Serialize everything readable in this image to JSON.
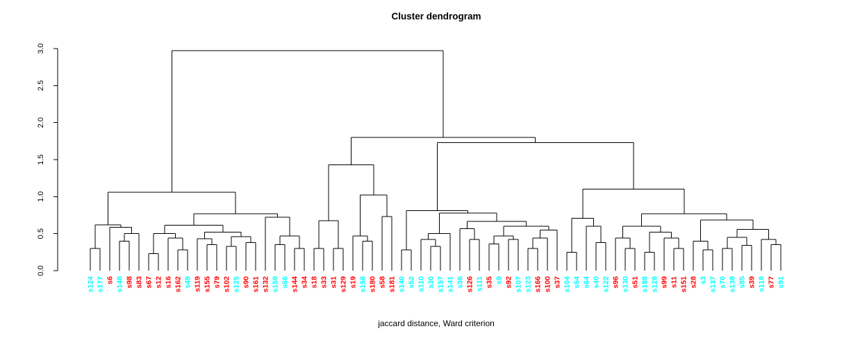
{
  "chart_data": {
    "type": "dendrogram",
    "title": "Cluster dendrogram",
    "xlabel": "jaccard distance, Ward criterion",
    "ylabel": "",
    "ylim": [
      0.0,
      3.0
    ],
    "yticks": [
      0.0,
      0.5,
      1.0,
      1.5,
      2.0,
      2.5,
      3.0
    ],
    "grid": false,
    "line_color": "#000000",
    "palette": {
      "cyan": "#00FFFF",
      "red": "#FF0000"
    },
    "leaves": [
      {
        "label": "s124",
        "color": "cyan"
      },
      {
        "label": "s177",
        "color": "cyan"
      },
      {
        "label": "s6",
        "color": "red"
      },
      {
        "label": "s148",
        "color": "cyan"
      },
      {
        "label": "s98",
        "color": "red"
      },
      {
        "label": "s83",
        "color": "red"
      },
      {
        "label": "s67",
        "color": "red"
      },
      {
        "label": "s12",
        "color": "red"
      },
      {
        "label": "s16",
        "color": "red"
      },
      {
        "label": "s162",
        "color": "red"
      },
      {
        "label": "s49",
        "color": "cyan"
      },
      {
        "label": "s119",
        "color": "red"
      },
      {
        "label": "s155",
        "color": "red"
      },
      {
        "label": "s79",
        "color": "red"
      },
      {
        "label": "s102",
        "color": "red"
      },
      {
        "label": "s125",
        "color": "cyan"
      },
      {
        "label": "s90",
        "color": "red"
      },
      {
        "label": "s161",
        "color": "red"
      },
      {
        "label": "s132",
        "color": "red"
      },
      {
        "label": "s159",
        "color": "cyan"
      },
      {
        "label": "s66",
        "color": "cyan"
      },
      {
        "label": "s144",
        "color": "red"
      },
      {
        "label": "s34",
        "color": "red"
      },
      {
        "label": "s18",
        "color": "red"
      },
      {
        "label": "s33",
        "color": "red"
      },
      {
        "label": "s31",
        "color": "red"
      },
      {
        "label": "s129",
        "color": "red"
      },
      {
        "label": "s19",
        "color": "red"
      },
      {
        "label": "s158",
        "color": "cyan"
      },
      {
        "label": "s180",
        "color": "red"
      },
      {
        "label": "s58",
        "color": "red"
      },
      {
        "label": "s181",
        "color": "red"
      },
      {
        "label": "s140",
        "color": "cyan"
      },
      {
        "label": "s52",
        "color": "cyan"
      },
      {
        "label": "s110",
        "color": "cyan"
      },
      {
        "label": "s30",
        "color": "cyan"
      },
      {
        "label": "s157",
        "color": "cyan"
      },
      {
        "label": "s141",
        "color": "cyan"
      },
      {
        "label": "s36",
        "color": "cyan"
      },
      {
        "label": "s126",
        "color": "red"
      },
      {
        "label": "s111",
        "color": "cyan"
      },
      {
        "label": "s35",
        "color": "red"
      },
      {
        "label": "s9",
        "color": "cyan"
      },
      {
        "label": "s92",
        "color": "red"
      },
      {
        "label": "s107",
        "color": "cyan"
      },
      {
        "label": "s123",
        "color": "cyan"
      },
      {
        "label": "s166",
        "color": "red"
      },
      {
        "label": "s100",
        "color": "red"
      },
      {
        "label": "s37",
        "color": "red"
      },
      {
        "label": "s104",
        "color": "cyan"
      },
      {
        "label": "s54",
        "color": "cyan"
      },
      {
        "label": "s64",
        "color": "cyan"
      },
      {
        "label": "s40",
        "color": "cyan"
      },
      {
        "label": "s122",
        "color": "cyan"
      },
      {
        "label": "s96",
        "color": "red"
      },
      {
        "label": "s130",
        "color": "cyan"
      },
      {
        "label": "s51",
        "color": "red"
      },
      {
        "label": "s188",
        "color": "cyan"
      },
      {
        "label": "s128",
        "color": "cyan"
      },
      {
        "label": "s99",
        "color": "red"
      },
      {
        "label": "s11",
        "color": "red"
      },
      {
        "label": "s151",
        "color": "red"
      },
      {
        "label": "s28",
        "color": "red"
      },
      {
        "label": "s3",
        "color": "cyan"
      },
      {
        "label": "s137",
        "color": "cyan"
      },
      {
        "label": "s70",
        "color": "cyan"
      },
      {
        "label": "s139",
        "color": "cyan"
      },
      {
        "label": "s85",
        "color": "cyan"
      },
      {
        "label": "s39",
        "color": "red"
      },
      {
        "label": "s118",
        "color": "cyan"
      },
      {
        "label": "s77",
        "color": "red"
      },
      {
        "label": "s91",
        "color": "cyan"
      }
    ],
    "tree": [
      2.97,
      [
        1.06,
        [
          0.62,
          [
            0.3,
            0,
            1
          ],
          [
            0.585,
            2,
            [
              0.5,
              [
                0.4,
                3,
                4
              ],
              5
            ]
          ]
        ],
        [
          0.77,
          [
            0.615,
            [
              0.5,
              [
                0.23,
                6,
                7
              ],
              [
                0.44,
                8,
                [
                  0.28,
                  9,
                  10
                ]
              ]
            ],
            [
              0.52,
              [
                0.43,
                11,
                [
                  0.35,
                  12,
                  13
                ]
              ],
              [
                0.46,
                [
                  0.33,
                  14,
                  15
                ],
                [
                  0.38,
                  16,
                  17
                ]
              ]
            ]
          ],
          [
            0.72,
            18,
            [
              0.47,
              [
                0.35,
                19,
                20
              ],
              [
                0.3,
                21,
                22
              ]
            ]
          ]
        ]
      ],
      [
        1.8,
        [
          1.43,
          [
            0.675,
            [
              0.3,
              23,
              24
            ],
            [
              0.3,
              25,
              26
            ]
          ],
          [
            1.02,
            [
              0.47,
              27,
              [
                0.4,
                28,
                29
              ]
            ],
            [
              0.73,
              30,
              31
            ]
          ]
        ],
        [
          1.73,
          [
            0.81,
            [
              0.28,
              32,
              33
            ],
            [
              0.78,
              [
                0.5,
                [
                  0.42,
                  34,
                  [
                    0.33,
                    35,
                    36
                  ]
                ],
                37
              ],
              [
                0.665,
                [
                  0.565,
                  38,
                  [
                    0.42,
                    39,
                    40
                  ]
                ],
                [
                  0.6,
                  [
                    0.47,
                    [
                      0.36,
                      41,
                      42
                    ],
                    [
                      0.42,
                      43,
                      44
                    ]
                  ],
                  [
                    0.55,
                    [
                      0.44,
                      [
                        0.3,
                        45,
                        46
                      ],
                      47
                    ],
                    48
                  ]
                ]
              ]
            ]
          ],
          [
            1.1,
            [
              0.71,
              [
                0.25,
                49,
                50
              ],
              [
                0.6,
                51,
                [
                  0.38,
                  52,
                  53
                ]
              ]
            ],
            [
              0.77,
              [
                0.6,
                [
                  0.44,
                  54,
                  [
                    0.3,
                    55,
                    56
                  ]
                ],
                [
                  0.52,
                  [
                    0.25,
                    57,
                    58
                  ],
                  [
                    0.44,
                    59,
                    [
                      0.3,
                      60,
                      61
                    ]
                  ]
                ]
              ],
              [
                0.685,
                [
                  0.4,
                  62,
                  [
                    0.28,
                    63,
                    64
                  ]
                ],
                [
                  0.56,
                  [
                    0.45,
                    [
                      0.3,
                      65,
                      66
                    ],
                    [
                      0.34,
                      67,
                      68
                    ]
                  ],
                  [
                    0.42,
                    69,
                    [
                      0.35,
                      70,
                      71
                    ]
                  ]
                ]
              ]
            ]
          ]
        ]
      ]
    ]
  }
}
